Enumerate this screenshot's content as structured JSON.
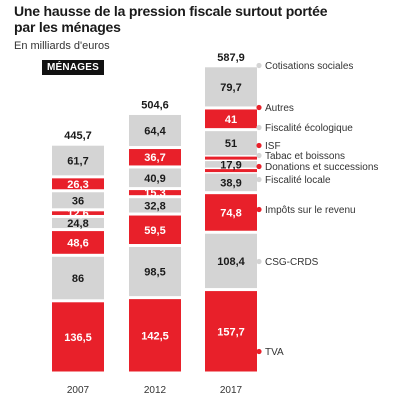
{
  "header": {
    "title": "Une hausse de la pression fiscale surtout portée par les ménages",
    "subtitle": "En milliards d'euros",
    "badge": "MÉNAGES"
  },
  "colors": {
    "red": "#e8202a",
    "gray": "#d4d4d4",
    "legend_dot_red": "#e8202a",
    "legend_dot_gray": "#d4d4d4"
  },
  "chart_data": {
    "type": "bar",
    "stacked": true,
    "categories": [
      "2007",
      "2012",
      "2017"
    ],
    "totals": [
      "445,7",
      "504,6",
      "587,9"
    ],
    "series": [
      {
        "name": "TVA",
        "color": "red",
        "values": [
          136.5,
          142.5,
          157.7
        ],
        "labels": [
          "136,5",
          "142,5",
          "157,7"
        ]
      },
      {
        "name": "CSG-CRDS",
        "color": "gray",
        "values": [
          86,
          98.5,
          108.4
        ],
        "labels": [
          "86",
          "98,5",
          "108,4"
        ]
      },
      {
        "name": "Impôts sur le revenu",
        "color": "red",
        "values": [
          48.6,
          59.5,
          74.8
        ],
        "labels": [
          "48,6",
          "59,5",
          "74,8"
        ]
      },
      {
        "name": "Fiscalité locale",
        "color": "gray",
        "values": [
          24.8,
          32.8,
          38.9
        ],
        "labels": [
          "24,8",
          "32,8",
          "38,9"
        ]
      },
      {
        "name": "Donations et successions",
        "color": "red",
        "values": [
          12.6,
          15.3,
          17.9
        ],
        "labels": [
          "12,6",
          "15,3",
          "17,9"
        ]
      },
      {
        "name": "Tabac et boissons",
        "color": "gray",
        "values": [
          36,
          40.9,
          51
        ],
        "labels": [
          "36",
          "40,9",
          "51"
        ]
      },
      {
        "name": "ISF",
        "color": "red",
        "values": [
          26.3,
          36.7,
          41
        ],
        "labels": [
          "26,3",
          "36,7",
          "41"
        ]
      },
      {
        "name": "Fiscalité écologique",
        "color": "gray",
        "values": [
          61.7,
          64.4,
          79.7
        ],
        "labels": [
          "61,7",
          "64,4",
          "79,7"
        ]
      },
      {
        "name": "Autres",
        "color": "red",
        "values": [
          null,
          null,
          null
        ],
        "labels": [
          "",
          "",
          ""
        ]
      },
      {
        "name": "Cotisations sociales",
        "color": "gray",
        "values": [
          null,
          null,
          null
        ],
        "labels": [
          "",
          "",
          ""
        ]
      }
    ],
    "legend_order_top_to_bottom": [
      "Cotisations sociales",
      "Autres",
      "Fiscalité écologique",
      "ISF",
      "Tabac et boissons",
      "Donations et successions",
      "Fiscalité locale",
      "Impôts sur le revenu",
      "CSG-CRDS",
      "TVA"
    ],
    "legend_placement": "right",
    "grid": false
  }
}
